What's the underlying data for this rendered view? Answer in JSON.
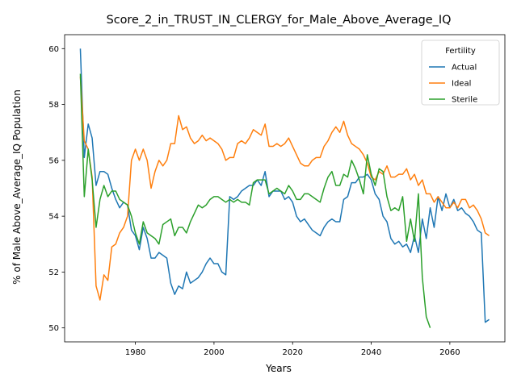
{
  "chart_data": {
    "type": "line",
    "title": "Score_2_in_TRUST_IN_CLERGY_for_Male_Above_Average_IQ",
    "xlabel": "Years",
    "ylabel": "% of Male Above_Average_IQ Population",
    "xlim": [
      1962,
      2074
    ],
    "ylim": [
      49.5,
      60.5
    ],
    "xticks": [
      1980,
      2000,
      2020,
      2040,
      2060
    ],
    "yticks": [
      50,
      52,
      54,
      56,
      58,
      60
    ],
    "grid": false,
    "legend": {
      "title": "Fertility",
      "position": "top-right"
    },
    "series": [
      {
        "name": "Actual",
        "color": "#1f77b4",
        "x": [
          1966,
          1967,
          1968,
          1969,
          1970,
          1971,
          1972,
          1973,
          1974,
          1975,
          1976,
          1977,
          1978,
          1979,
          1980,
          1981,
          1982,
          1983,
          1984,
          1985,
          1986,
          1987,
          1988,
          1989,
          1990,
          1991,
          1992,
          1993,
          1994,
          1995,
          1996,
          1997,
          1998,
          1999,
          2000,
          2001,
          2002,
          2003,
          2004,
          2005,
          2006,
          2007,
          2008,
          2009,
          2010,
          2011,
          2012,
          2013,
          2014,
          2015,
          2016,
          2017,
          2018,
          2019,
          2020,
          2021,
          2022,
          2023,
          2024,
          2025,
          2026,
          2027,
          2028,
          2029,
          2030,
          2031,
          2032,
          2033,
          2034,
          2035,
          2036,
          2037,
          2038,
          2039,
          2040,
          2041,
          2042,
          2043,
          2044,
          2045,
          2046,
          2047,
          2048,
          2049,
          2050,
          2051,
          2052,
          2053,
          2054,
          2055,
          2056,
          2057,
          2058,
          2059,
          2060,
          2061,
          2062,
          2063,
          2064,
          2065,
          2066,
          2067,
          2068,
          2069,
          2070
        ],
        "values": [
          60.0,
          56.1,
          57.3,
          56.8,
          55.1,
          55.6,
          55.6,
          55.5,
          55.0,
          54.6,
          54.3,
          54.5,
          54.4,
          53.5,
          53.3,
          52.8,
          53.6,
          53.2,
          52.5,
          52.5,
          52.7,
          52.6,
          52.5,
          51.6,
          51.2,
          51.5,
          51.4,
          52.0,
          51.6,
          51.7,
          51.8,
          52.0,
          52.3,
          52.5,
          52.3,
          52.3,
          52.0,
          51.9,
          54.7,
          54.6,
          54.7,
          54.9,
          55.0,
          55.1,
          55.1,
          55.3,
          55.1,
          55.6,
          54.7,
          54.9,
          54.9,
          54.9,
          54.6,
          54.7,
          54.5,
          54.0,
          53.8,
          53.9,
          53.7,
          53.5,
          53.4,
          53.3,
          53.6,
          53.8,
          53.9,
          53.8,
          53.8,
          54.6,
          54.7,
          55.2,
          55.2,
          55.4,
          55.4,
          55.5,
          55.3,
          54.8,
          54.6,
          54.0,
          53.8,
          53.2,
          53.0,
          53.1,
          52.9,
          53.0,
          52.7,
          53.3,
          52.7,
          53.9,
          53.2,
          54.3,
          53.6,
          54.7,
          54.2,
          54.8,
          54.3,
          54.6,
          54.2,
          54.3,
          54.1,
          54.0,
          53.8,
          53.5,
          53.4,
          50.2,
          50.3
        ]
      },
      {
        "name": "Ideal",
        "color": "#ff7f0e",
        "x": [
          1966,
          1967,
          1968,
          1969,
          1970,
          1971,
          1972,
          1973,
          1974,
          1975,
          1976,
          1977,
          1978,
          1979,
          1980,
          1981,
          1982,
          1983,
          1984,
          1985,
          1986,
          1987,
          1988,
          1989,
          1990,
          1991,
          1992,
          1993,
          1994,
          1995,
          1996,
          1997,
          1998,
          1999,
          2000,
          2001,
          2002,
          2003,
          2004,
          2005,
          2006,
          2007,
          2008,
          2009,
          2010,
          2011,
          2012,
          2013,
          2014,
          2015,
          2016,
          2017,
          2018,
          2019,
          2020,
          2021,
          2022,
          2023,
          2024,
          2025,
          2026,
          2027,
          2028,
          2029,
          2030,
          2031,
          2032,
          2033,
          2034,
          2035,
          2036,
          2037,
          2038,
          2039,
          2040,
          2041,
          2042,
          2043,
          2044,
          2045,
          2046,
          2047,
          2048,
          2049,
          2050,
          2051,
          2052,
          2053,
          2054,
          2055,
          2056,
          2057,
          2058,
          2059,
          2060,
          2061,
          2062,
          2063,
          2064,
          2065,
          2066,
          2067,
          2068,
          2069,
          2070
        ],
        "values": [
          59.0,
          56.7,
          56.4,
          55.4,
          51.5,
          51.0,
          51.9,
          51.7,
          52.9,
          53.0,
          53.4,
          53.6,
          54.0,
          56.0,
          56.4,
          56.0,
          56.4,
          56.0,
          55.0,
          55.6,
          56.0,
          55.8,
          56.0,
          56.6,
          56.6,
          57.6,
          57.1,
          57.2,
          56.8,
          56.6,
          56.7,
          56.9,
          56.7,
          56.8,
          56.7,
          56.6,
          56.4,
          56.0,
          56.1,
          56.1,
          56.6,
          56.7,
          56.6,
          56.8,
          57.1,
          57.0,
          56.9,
          57.3,
          56.5,
          56.5,
          56.6,
          56.5,
          56.6,
          56.8,
          56.5,
          56.2,
          55.9,
          55.8,
          55.8,
          56.0,
          56.1,
          56.1,
          56.5,
          56.7,
          57.0,
          57.2,
          57.0,
          57.4,
          56.9,
          56.6,
          56.5,
          56.4,
          56.2,
          55.9,
          55.4,
          55.3,
          55.6,
          55.5,
          55.8,
          55.4,
          55.4,
          55.5,
          55.5,
          55.7,
          55.3,
          55.5,
          55.1,
          55.3,
          54.8,
          54.8,
          54.5,
          54.7,
          54.5,
          54.3,
          54.3,
          54.5,
          54.3,
          54.6,
          54.6,
          54.3,
          54.4,
          54.2,
          53.9,
          53.4,
          53.3
        ]
      },
      {
        "name": "Sterile",
        "color": "#2ca02c",
        "x": [
          1966,
          1967,
          1968,
          1969,
          1970,
          1971,
          1972,
          1973,
          1974,
          1975,
          1976,
          1977,
          1978,
          1979,
          1980,
          1981,
          1982,
          1983,
          1984,
          1985,
          1986,
          1987,
          1988,
          1989,
          1990,
          1991,
          1992,
          1993,
          1994,
          1995,
          1996,
          1997,
          1998,
          1999,
          2000,
          2001,
          2002,
          2003,
          2004,
          2005,
          2006,
          2007,
          2008,
          2009,
          2010,
          2011,
          2012,
          2013,
          2014,
          2015,
          2016,
          2017,
          2018,
          2019,
          2020,
          2021,
          2022,
          2023,
          2024,
          2025,
          2026,
          2027,
          2028,
          2029,
          2030,
          2031,
          2032,
          2033,
          2034,
          2035,
          2036,
          2037,
          2038,
          2039,
          2040,
          2041,
          2042,
          2043,
          2044,
          2045,
          2046,
          2047,
          2048,
          2049,
          2050,
          2051,
          2052,
          2053,
          2054,
          2055
        ],
        "values": [
          59.1,
          54.7,
          56.4,
          55.3,
          53.6,
          54.6,
          55.1,
          54.7,
          54.9,
          54.9,
          54.6,
          54.5,
          54.4,
          54.0,
          53.4,
          53.0,
          53.8,
          53.4,
          53.3,
          53.2,
          53.0,
          53.7,
          53.8,
          53.9,
          53.3,
          53.6,
          53.6,
          53.4,
          53.8,
          54.1,
          54.4,
          54.3,
          54.4,
          54.6,
          54.7,
          54.7,
          54.6,
          54.5,
          54.6,
          54.5,
          54.6,
          54.5,
          54.5,
          54.4,
          55.2,
          55.3,
          55.3,
          55.3,
          54.8,
          54.9,
          55.0,
          54.9,
          54.8,
          55.1,
          54.9,
          54.6,
          54.6,
          54.8,
          54.8,
          54.7,
          54.6,
          54.5,
          55.0,
          55.4,
          55.6,
          55.1,
          55.1,
          55.5,
          55.4,
          56.0,
          55.7,
          55.3,
          54.8,
          56.2,
          55.5,
          55.1,
          55.7,
          55.6,
          54.7,
          54.2,
          54.3,
          54.2,
          54.7,
          53.1,
          53.9,
          53.1,
          54.8,
          51.8,
          50.4,
          50.0
        ]
      }
    ]
  }
}
